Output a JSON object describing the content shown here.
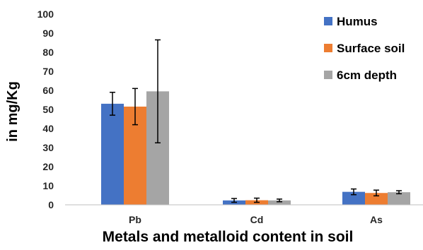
{
  "chart_data": {
    "type": "bar",
    "title": "",
    "xlabel": "Metals and metalloid content in soil",
    "ylabel": "in mg/Kg",
    "ylim": [
      0,
      100
    ],
    "yticks": [
      0,
      10,
      20,
      30,
      40,
      50,
      60,
      70,
      80,
      90,
      100
    ],
    "grid": false,
    "legend_position": "top-right",
    "categories": [
      "Pb",
      "Cd",
      "As"
    ],
    "series": [
      {
        "name": "Humus",
        "color": "#4472C4",
        "values": [
          53,
          2.3,
          6.8
        ],
        "errors": [
          6,
          1,
          1.5
        ]
      },
      {
        "name": "Surface soil",
        "color": "#ED7D31",
        "values": [
          51.5,
          2.4,
          6.2
        ],
        "errors": [
          9.5,
          1.1,
          1.5
        ]
      },
      {
        "name": "6cm depth",
        "color": "#A5A5A5",
        "values": [
          59.5,
          2.3,
          6.6
        ],
        "errors": [
          27,
          0.7,
          0.8
        ]
      }
    ]
  }
}
